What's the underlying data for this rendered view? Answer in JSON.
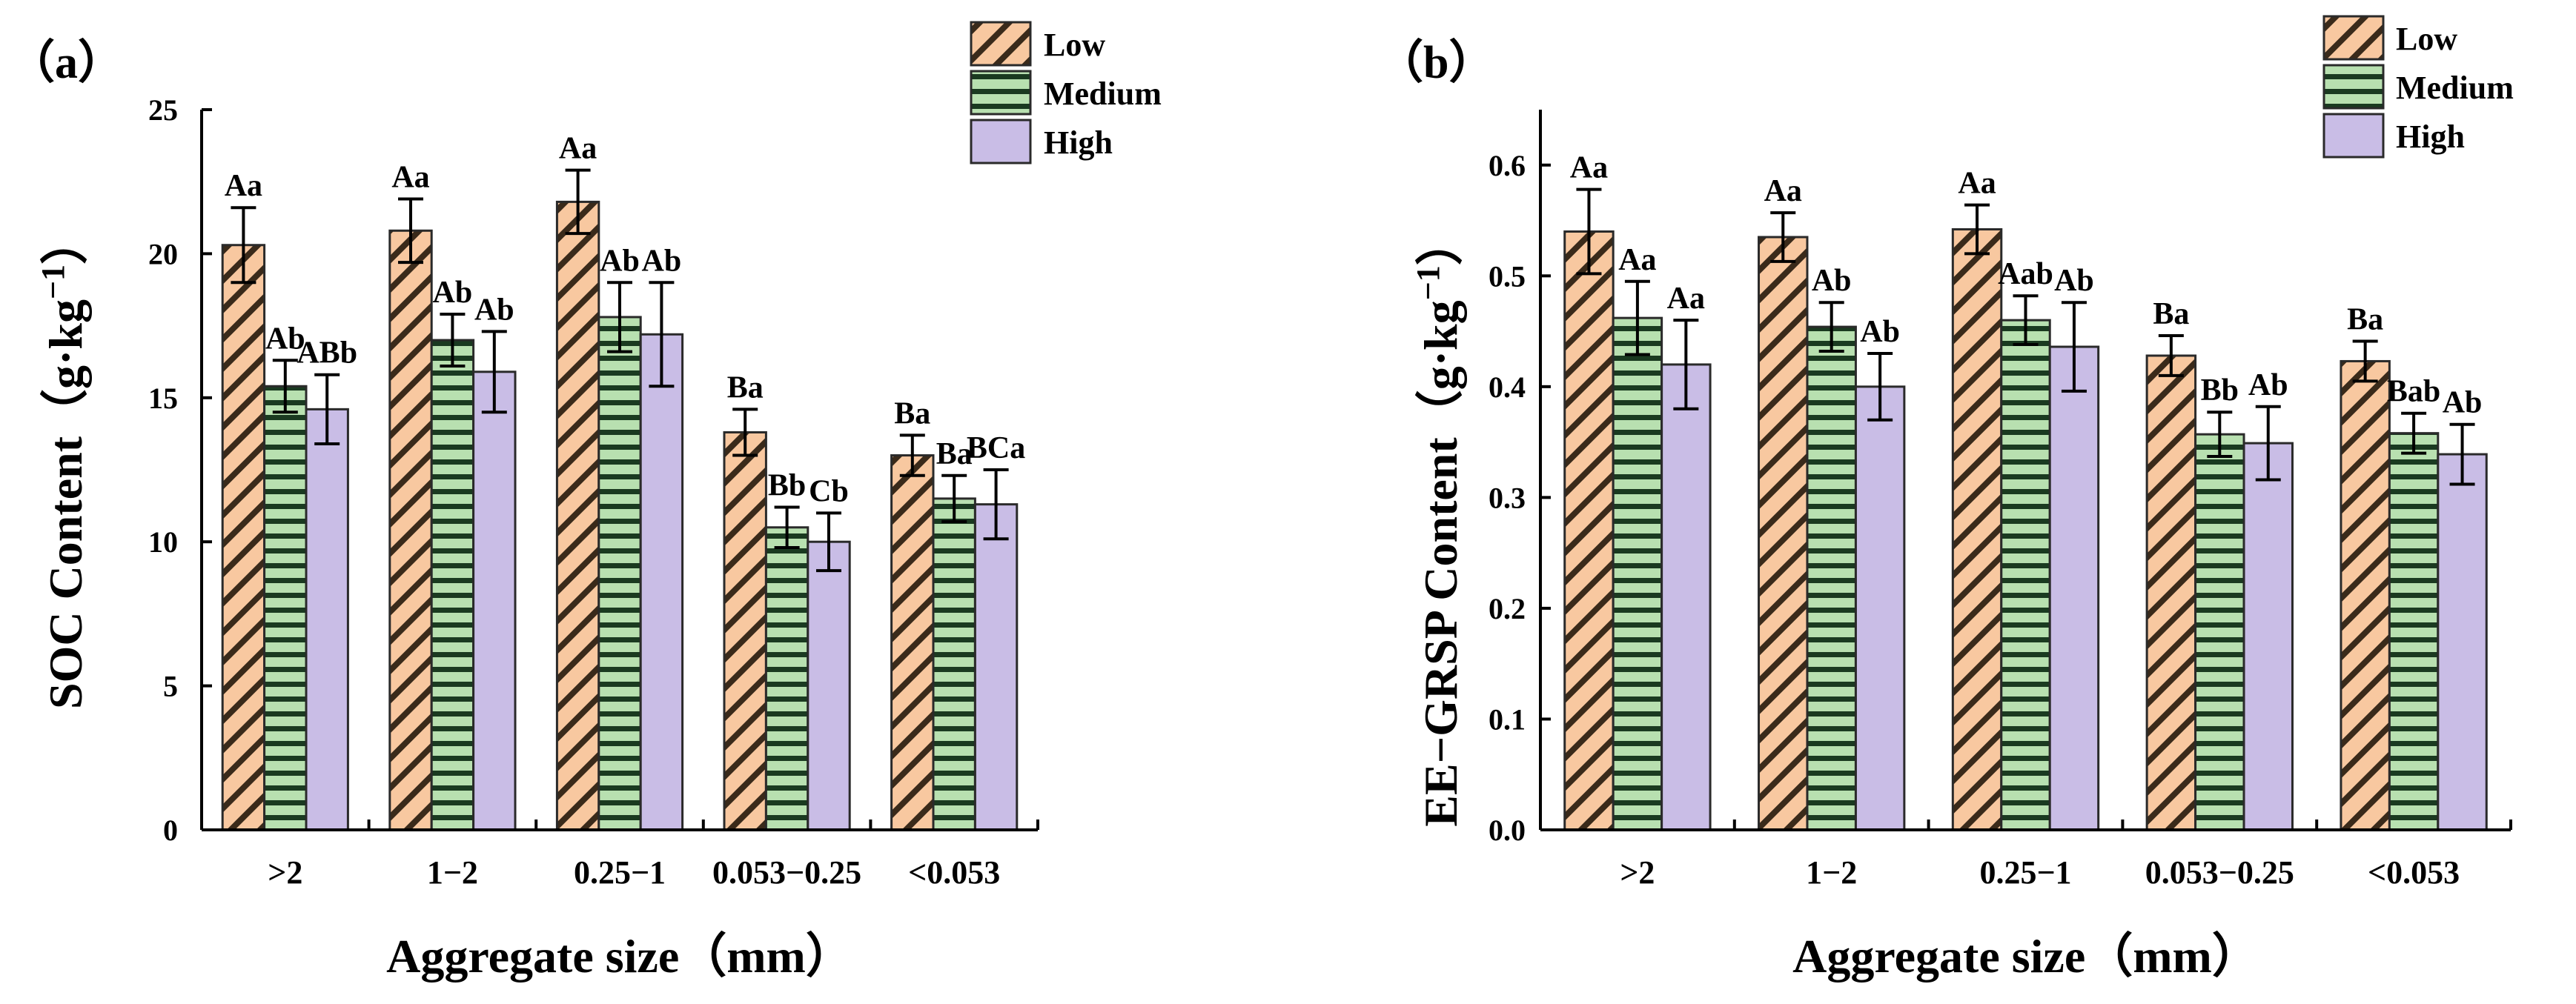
{
  "chart_data": [
    {
      "type": "bar",
      "panel_label": "（a）",
      "title": "",
      "xlabel": "Aggregate size（mm）",
      "ylabel": "SOC Content（g·kg",
      "ylabel_exponent": "−1",
      "ylabel_close": "）",
      "categories": [
        ">2",
        "1−2",
        "0.25−1",
        "0.053−0.25",
        "<0.053"
      ],
      "ylim": [
        0,
        25
      ],
      "yticks": [
        0,
        5,
        10,
        15,
        20,
        25
      ],
      "ytick_labels": [
        "0",
        "5",
        "10",
        "15",
        "20",
        "25"
      ],
      "legend_position": "top-right",
      "series": [
        {
          "name": "Low",
          "pattern": "diagonal",
          "fill": "#f8c8a0",
          "stroke": "#e05a10",
          "values": [
            20.3,
            20.8,
            21.8,
            13.8,
            13.0
          ],
          "errors": [
            1.3,
            1.1,
            1.1,
            0.8,
            0.7
          ],
          "labels": [
            "Aa",
            "Aa",
            "Aa",
            "Ba",
            "Ba"
          ]
        },
        {
          "name": "Medium",
          "pattern": "horizontal",
          "fill": "#b8e0b0",
          "stroke": "#0f5a20",
          "values": [
            15.4,
            17.0,
            17.8,
            10.5,
            11.5
          ],
          "errors": [
            0.9,
            0.9,
            1.2,
            0.7,
            0.8
          ],
          "labels": [
            "Ab",
            "Ab",
            "Ab",
            "Bb",
            "Ba"
          ]
        },
        {
          "name": "High",
          "pattern": "solid",
          "fill": "#c9bde6",
          "stroke": "#555555",
          "values": [
            14.6,
            15.9,
            17.2,
            10.0,
            11.3
          ],
          "errors": [
            1.2,
            1.4,
            1.8,
            1.0,
            1.2
          ],
          "labels": [
            "ABb",
            "Ab",
            "Ab",
            "Cb",
            "BCa"
          ]
        }
      ]
    },
    {
      "type": "bar",
      "panel_label": "（b）",
      "title": "",
      "xlabel": "Aggregate size（mm）",
      "ylabel": "EE−GRSP Content（g·kg",
      "ylabel_exponent": "−1",
      "ylabel_close": "）",
      "categories": [
        ">2",
        "1−2",
        "0.25−1",
        "0.053−0.25",
        "<0.053"
      ],
      "ylim": [
        0,
        0.65
      ],
      "yticks": [
        0,
        0.1,
        0.2,
        0.3,
        0.4,
        0.5,
        0.6
      ],
      "ytick_labels": [
        "0.0",
        "0.1",
        "0.2",
        "0.3",
        "0.4",
        "0.5",
        "0.6"
      ],
      "legend_position": "top-right",
      "series": [
        {
          "name": "Low",
          "pattern": "diagonal",
          "fill": "#f8c8a0",
          "stroke": "#e05a10",
          "values": [
            0.54,
            0.535,
            0.542,
            0.428,
            0.423
          ],
          "errors": [
            0.038,
            0.022,
            0.022,
            0.018,
            0.018
          ],
          "labels": [
            "Aa",
            "Aa",
            "Aa",
            "Ba",
            "Ba"
          ]
        },
        {
          "name": "Medium",
          "pattern": "horizontal",
          "fill": "#b8e0b0",
          "stroke": "#0f5a20",
          "values": [
            0.462,
            0.454,
            0.46,
            0.357,
            0.358
          ],
          "errors": [
            0.033,
            0.022,
            0.022,
            0.02,
            0.018
          ],
          "labels": [
            "Aa",
            "Ab",
            "Aab",
            "Bb",
            "Bab"
          ]
        },
        {
          "name": "High",
          "pattern": "solid",
          "fill": "#c9bde6",
          "stroke": "#555555",
          "values": [
            0.42,
            0.4,
            0.436,
            0.349,
            0.339
          ],
          "errors": [
            0.04,
            0.03,
            0.04,
            0.033,
            0.027
          ],
          "labels": [
            "Aa",
            "Ab",
            "Ab",
            "Ab",
            "Ab"
          ]
        }
      ]
    }
  ]
}
